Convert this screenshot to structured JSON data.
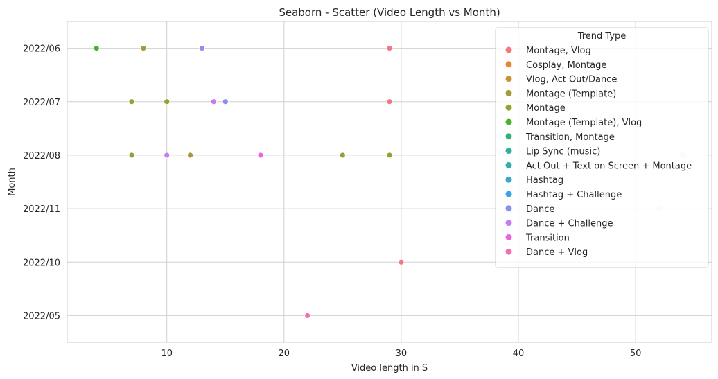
{
  "chart_data": {
    "type": "scatter",
    "title": "Seaborn - Scatter (Video Length vs Month)",
    "xlabel": "Video length in S",
    "ylabel": "Month",
    "xlim": [
      1.5,
      56.5
    ],
    "xticks": [
      10,
      20,
      30,
      40,
      50
    ],
    "y_categories": [
      "2022/06",
      "2022/07",
      "2022/08",
      "2022/11",
      "2022/10",
      "2022/05"
    ],
    "grid": true,
    "legend_position": "top-right",
    "legend_title": "Trend Type",
    "series": [
      {
        "name": "Montage, Vlog",
        "color": "#f37782",
        "points": [
          {
            "x": 29,
            "y": "2022/06"
          },
          {
            "x": 29,
            "y": "2022/07"
          },
          {
            "x": 30,
            "y": "2022/10"
          }
        ]
      },
      {
        "name": "Cosplay, Montage",
        "color": "#e98433",
        "points": []
      },
      {
        "name": "Vlog, Act Out/Dance",
        "color": "#c98f3a",
        "points": []
      },
      {
        "name": "Montage (Template)",
        "color": "#a89838",
        "points": [
          {
            "x": 8,
            "y": "2022/06"
          },
          {
            "x": 12,
            "y": "2022/08"
          }
        ]
      },
      {
        "name": "Montage",
        "color": "#8ea535",
        "points": [
          {
            "x": 7,
            "y": "2022/07"
          },
          {
            "x": 10,
            "y": "2022/07"
          },
          {
            "x": 7,
            "y": "2022/08"
          },
          {
            "x": 25,
            "y": "2022/08"
          },
          {
            "x": 29,
            "y": "2022/08"
          }
        ]
      },
      {
        "name": "Montage (Template), Vlog",
        "color": "#4bb030",
        "points": [
          {
            "x": 4,
            "y": "2022/06"
          }
        ]
      },
      {
        "name": "Transition, Montage",
        "color": "#32b07a",
        "points": []
      },
      {
        "name": "Lip Sync (music)",
        "color": "#33af9e",
        "points": []
      },
      {
        "name": "Act Out + Text on Screen + Montage",
        "color": "#35acae",
        "points": []
      },
      {
        "name": "Hashtag",
        "color": "#38a8c3",
        "points": []
      },
      {
        "name": "Hashtag + Challenge",
        "color": "#3ca1e0",
        "points": []
      },
      {
        "name": "Dance",
        "color": "#8b8ff0",
        "points": [
          {
            "x": 13,
            "y": "2022/06"
          },
          {
            "x": 15,
            "y": "2022/07"
          }
        ]
      },
      {
        "name": "Dance + Challenge",
        "color": "#c57ef1",
        "points": [
          {
            "x": 14,
            "y": "2022/07"
          },
          {
            "x": 10,
            "y": "2022/08"
          }
        ]
      },
      {
        "name": "Transition",
        "color": "#e965df",
        "points": [
          {
            "x": 18,
            "y": "2022/08"
          }
        ]
      },
      {
        "name": "Dance + Vlog",
        "color": "#f071ae",
        "points": [
          {
            "x": 22,
            "y": "2022/05"
          }
        ]
      },
      {
        "name": "",
        "color": "#fbdde3",
        "points": [
          {
            "x": 54,
            "y": "2022/08"
          },
          {
            "x": 52,
            "y": "2022/11"
          }
        ]
      }
    ]
  }
}
